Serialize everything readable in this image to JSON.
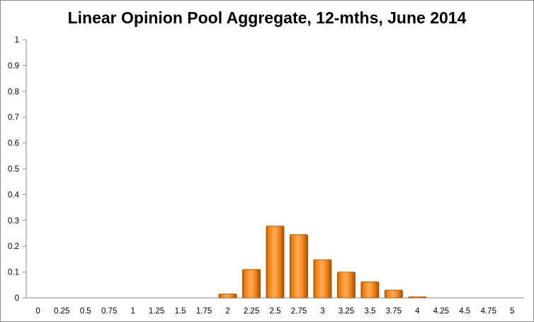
{
  "chart_data": {
    "type": "bar",
    "title": "Linear Opinion Pool Aggregate, 12-mths, June 2014",
    "xlabel": "",
    "ylabel": "",
    "categories": [
      "0",
      "0.25",
      "0.5",
      "0.75",
      "1",
      "1.25",
      "1.5",
      "1.75",
      "2",
      "2.25",
      "2.5",
      "2.75",
      "3",
      "3.25",
      "3.5",
      "3.75",
      "4",
      "4.25",
      "4.5",
      "4.75",
      "5"
    ],
    "values": [
      0,
      0,
      0,
      0,
      0,
      0,
      0,
      0,
      0.015,
      0.11,
      0.278,
      0.245,
      0.148,
      0.1,
      0.062,
      0.03,
      0.004,
      0,
      0,
      0,
      0
    ],
    "ylim": [
      0,
      1
    ],
    "yticks": [
      "0",
      "0.1",
      "0.2",
      "0.3",
      "0.4",
      "0.5",
      "0.6",
      "0.7",
      "0.8",
      "0.9",
      "1"
    ],
    "grid": false,
    "legend": "none",
    "bar_color": "#f07d0a"
  }
}
